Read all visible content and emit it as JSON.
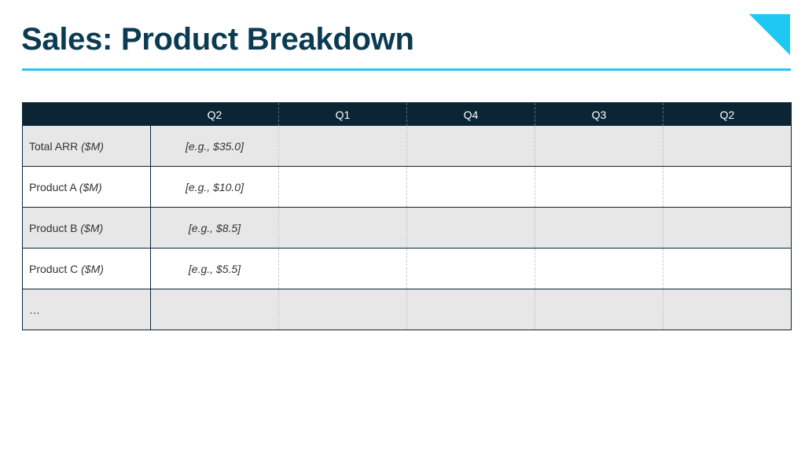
{
  "slide": {
    "title": "Sales: Product Breakdown",
    "accent_color": "#29c4ef",
    "header_color": "#0b2535",
    "title_color": "#0b3b52"
  },
  "table": {
    "corner_label": "",
    "columns": [
      "Q2",
      "Q1",
      "Q4",
      "Q3",
      "Q2"
    ],
    "rows": [
      {
        "label": "Total ARR",
        "unit": "($M)",
        "example": "[e.g., $35.0]"
      },
      {
        "label": "Product A",
        "unit": "($M)",
        "example": "[e.g., $10.0]"
      },
      {
        "label": "Product B",
        "unit": "($M)",
        "example": "[e.g., $8.5]"
      },
      {
        "label": "Product C",
        "unit": "($M)",
        "example": "[e.g., $5.5]"
      },
      {
        "label": "…",
        "unit": "",
        "example": ""
      }
    ]
  }
}
